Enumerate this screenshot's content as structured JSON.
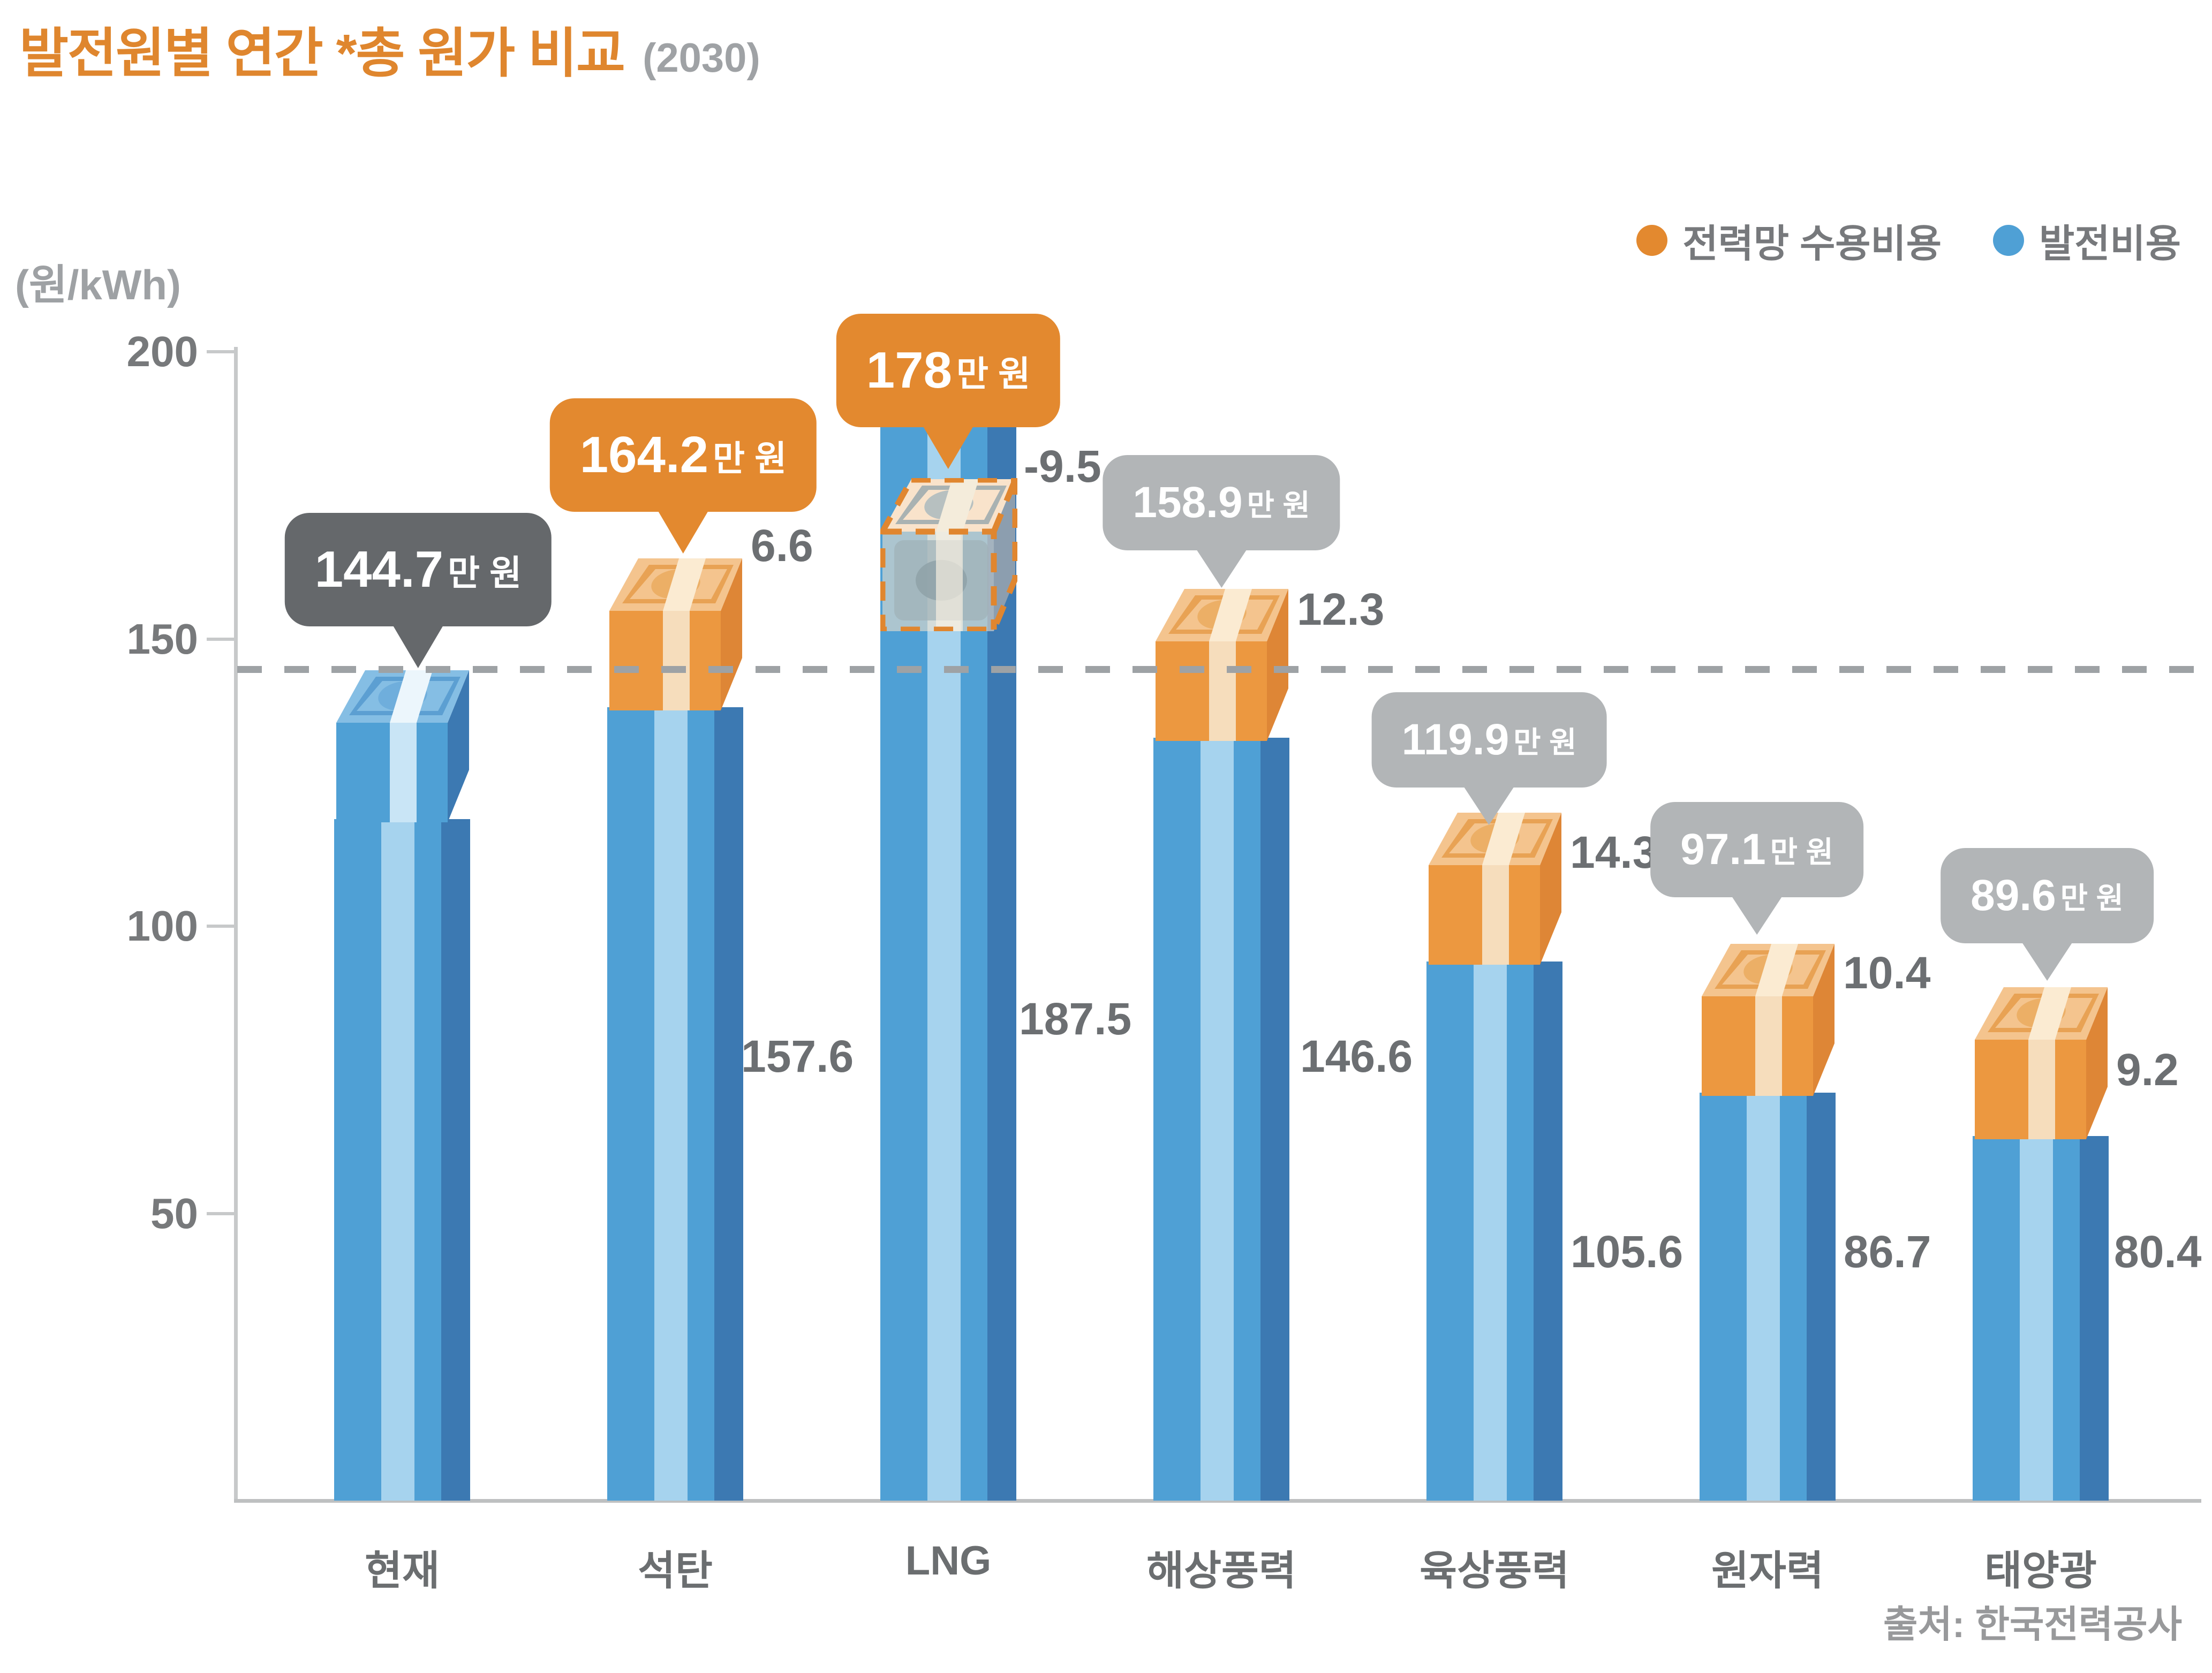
{
  "title": {
    "main": "발전원별 연간 *총 원가 비교",
    "year": "(2030)"
  },
  "legend": {
    "items": [
      {
        "label": "전력망 수용비용",
        "color": "#E3892F"
      },
      {
        "label": "발전비용",
        "color": "#4FA0D5"
      }
    ]
  },
  "y_axis": {
    "unit": "(원/kWh)",
    "ticks": [
      200,
      150,
      100,
      50
    ],
    "max": 200
  },
  "reference_line": {
    "value": 144.7
  },
  "source": "출처: 한국전력공사",
  "colors": {
    "orange": "#E3892F",
    "blue": "#4FA0D5",
    "gray_callout": "#B2B5B7",
    "dark_callout": "#65686B"
  },
  "chart_data": {
    "type": "bar",
    "stacked": true,
    "title": "발전원별 연간 *총 원가 비교 (2030)",
    "xlabel": "",
    "ylabel": "(원/kWh)",
    "ylim": [
      0,
      200
    ],
    "legend_position": "top-right",
    "grid": false,
    "categories": [
      "현재",
      "석탄",
      "LNG",
      "해상풍력",
      "육상풍력",
      "원자력",
      "태양광"
    ],
    "series": [
      {
        "name": "발전비용",
        "values": [
          144.7,
          157.6,
          187.5,
          146.6,
          105.6,
          86.7,
          80.4
        ]
      },
      {
        "name": "전력망 수용비용",
        "values": [
          0,
          6.6,
          -9.5,
          12.3,
          14.3,
          10.4,
          9.2
        ]
      }
    ],
    "totals": [
      144.7,
      164.2,
      178,
      158.9,
      119.9,
      97.1,
      89.6
    ],
    "callouts": [
      {
        "value": "144.7",
        "suffix": "만 원",
        "style": "dark"
      },
      {
        "value": "164.2",
        "suffix": "만 원",
        "style": "orange"
      },
      {
        "value": "178",
        "suffix": "만 원",
        "style": "orange"
      },
      {
        "value": "158.9",
        "suffix": "만 원",
        "style": "gray"
      },
      {
        "value": "119.9",
        "suffix": "만 원",
        "style": "gray"
      },
      {
        "value": "97.1",
        "suffix": "만 원",
        "style": "gray"
      },
      {
        "value": "89.6",
        "suffix": "만 원",
        "style": "gray"
      }
    ],
    "grid_cost_labels": [
      "",
      "6.6",
      "-9.5",
      "12.3",
      "14.3",
      "10.4",
      "9.2"
    ],
    "generation_cost_labels": [
      "",
      "157.6",
      "187.5",
      "146.6",
      "105.6",
      "86.7",
      "80.4"
    ],
    "reference_value": 144.7
  }
}
